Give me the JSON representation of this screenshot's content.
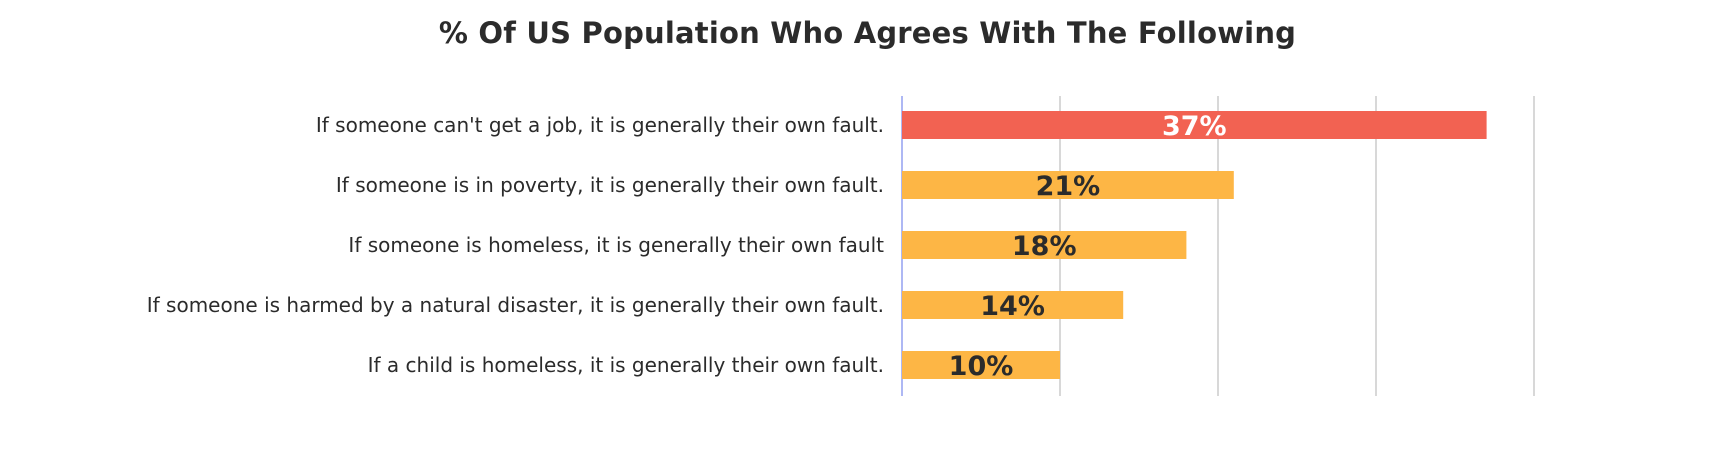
{
  "chart_data": {
    "type": "bar",
    "orientation": "horizontal",
    "title": "% Of US Population Who Agrees With The Following",
    "categories": [
      "If someone can't get a job, it is generally their own fault.",
      "If someone is in poverty, it is generally their own fault.",
      "If someone is homeless, it is generally their own fault",
      "If someone is harmed by a natural disaster, it is generally their own fault.",
      "If a child is homeless, it is generally their own fault."
    ],
    "values": [
      37,
      21,
      18,
      14,
      10
    ],
    "value_labels": [
      "37%",
      "21%",
      "18%",
      "14%",
      "10%"
    ],
    "xlim": [
      0,
      40
    ],
    "gridlines_at": [
      0,
      10,
      20,
      30,
      40
    ],
    "grid": true,
    "xlabel": "",
    "ylabel": "",
    "legend": "none",
    "bar_colors": [
      "#f26252",
      "#fdb645",
      "#fdb645",
      "#fdb645",
      "#fdb645"
    ],
    "value_label_colors": [
      "#ffffff",
      "#2b2b2b",
      "#2b2b2b",
      "#2b2b2b",
      "#2b2b2b"
    ],
    "gridline_color": "#bdbdbd",
    "baseline_color": "#9aa6f2"
  }
}
